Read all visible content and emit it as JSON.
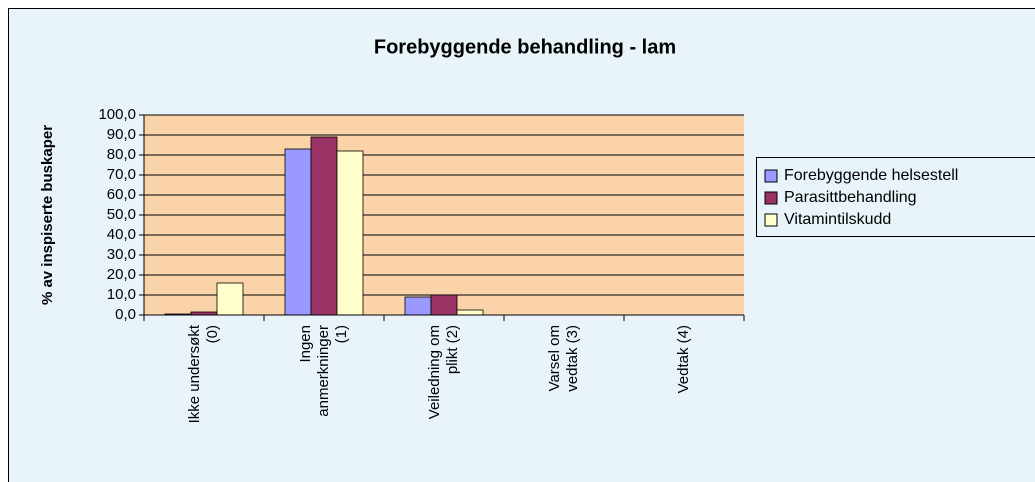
{
  "chart_data": {
    "type": "bar",
    "title": "Forebyggende behandling - lam",
    "y_label": "% av inspiserte buskaper",
    "categories": [
      "Ikke undersøkt (0)",
      "Ingen anmerkninger (1)",
      "Veiledning om plikt (2)",
      "Varsel om vedtak (3)",
      "Vedtak (4)"
    ],
    "series": [
      {
        "name": "Forebyggende helsestell",
        "color": "#9999ff",
        "values": [
          0.5,
          83,
          9,
          0,
          0
        ]
      },
      {
        "name": "Parasittbehandling",
        "color": "#993366",
        "values": [
          1.5,
          89,
          10,
          0,
          0
        ]
      },
      {
        "name": "Vitamintilskudd",
        "color": "#ffffcc",
        "values": [
          16,
          82,
          2.5,
          0,
          0
        ]
      }
    ],
    "ylim": [
      0,
      100
    ],
    "yticks": [
      {
        "value": 0,
        "label": "0,0"
      },
      {
        "value": 10,
        "label": "10,0"
      },
      {
        "value": 20,
        "label": "20,0"
      },
      {
        "value": 30,
        "label": "30,0"
      },
      {
        "value": 40,
        "label": "40,0"
      },
      {
        "value": 50,
        "label": "50,0"
      },
      {
        "value": 60,
        "label": "60,0"
      },
      {
        "value": 70,
        "label": "70,0"
      },
      {
        "value": 80,
        "label": "80,0"
      },
      {
        "value": 90,
        "label": "90,0"
      },
      {
        "value": 100,
        "label": "100,0"
      }
    ],
    "grid": true,
    "legend": "right"
  }
}
